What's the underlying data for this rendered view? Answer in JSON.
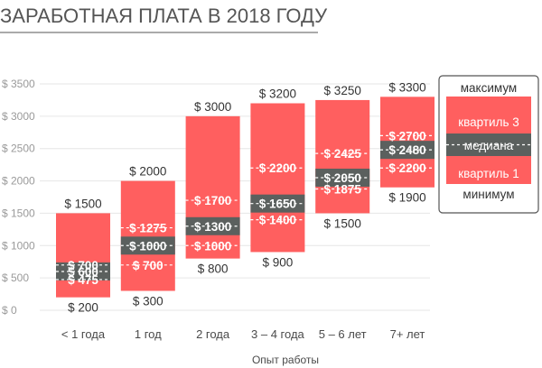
{
  "chart_data": {
    "type": "box",
    "title": "ЗАРАБОТНАЯ ПЛАТА В 2018 ГОДУ",
    "xlabel": "Опыт работы",
    "ylabel": "",
    "ylim": [
      0,
      3500
    ],
    "yticks": [
      0,
      500,
      1000,
      1500,
      2000,
      2500,
      3000,
      3500
    ],
    "ytick_labels": [
      "$ 0",
      "$ 500",
      "$ 1000",
      "$ 1500",
      "$ 2000",
      "$ 2500",
      "$ 3000",
      "$ 3500"
    ],
    "grid": true,
    "categories": [
      "< 1 года",
      "1 год",
      "2 года",
      "3 – 4 года",
      "5 – 6 лет",
      "7+ лет"
    ],
    "boxes": [
      {
        "min": 200,
        "q1": 475,
        "median": 600,
        "q3": 700,
        "max": 1500
      },
      {
        "min": 300,
        "q1": 700,
        "median": 1000,
        "q3": 1275,
        "max": 2000
      },
      {
        "min": 800,
        "q1": 1000,
        "median": 1300,
        "q3": 1700,
        "max": 3000
      },
      {
        "min": 900,
        "q1": 1400,
        "median": 1650,
        "q3": 2200,
        "max": 3200
      },
      {
        "min": 1500,
        "q1": 1875,
        "median": 2050,
        "q3": 2425,
        "max": 3250
      },
      {
        "min": 1900,
        "q1": 2200,
        "median": 2480,
        "q3": 2700,
        "max": 3300
      }
    ],
    "value_labels": {
      "min": [
        "$ 200",
        "$ 300",
        "$ 800",
        "$ 900",
        "$ 1500",
        "$ 1900"
      ],
      "q1": [
        "$ 475",
        "$ 700",
        "$ 1000",
        "$ 1400",
        "$ 1875",
        "$ 2200"
      ],
      "median": [
        "$ 600",
        "$ 1000",
        "$ 1300",
        "$ 1650",
        "$ 2050",
        "$ 2480"
      ],
      "q3": [
        "$ 700",
        "$ 1275",
        "$ 1700",
        "$ 2200",
        "$ 2425",
        "$ 2700"
      ],
      "max": [
        "$ 1500",
        "$ 2000",
        "$ 3000",
        "$ 3200",
        "$ 3250",
        "$ 3300"
      ]
    },
    "legend": {
      "position": "right",
      "max": "максимум",
      "q3": "квартиль 3",
      "median": "медиана",
      "q1": "квартиль 1",
      "min": "минимум"
    },
    "colors": {
      "box": "#ff5f5f",
      "median_band": "#5b605e",
      "title_rule": "#555555",
      "grid": "#e6e6e6",
      "dash": "#ffffff"
    }
  }
}
